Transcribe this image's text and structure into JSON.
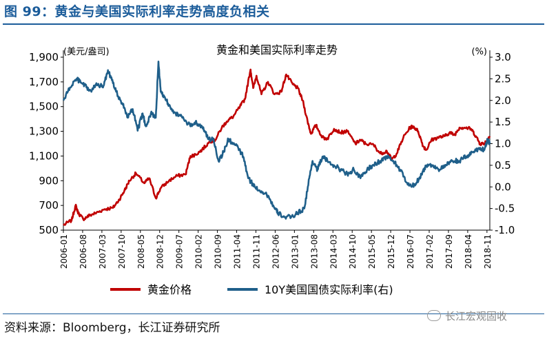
{
  "figure": {
    "title": "图 99：黄金与美国实际利率走势高度负相关",
    "source": "资料来源：Bloomberg，长江证券研究所",
    "watermark": "长江宏观固收"
  },
  "chart_data": {
    "type": "line",
    "title": "黄金和美国实际利率走势",
    "left_axis_unit": "(美元/盎司)",
    "right_axis_unit": "(%)",
    "ylim_left": [
      500,
      1900
    ],
    "yticks_left": [
      "500",
      "700",
      "900",
      "1,100",
      "1,300",
      "1,500",
      "1,700",
      "1,900"
    ],
    "ylim_right": [
      -1.0,
      3.0
    ],
    "yticks_right": [
      "-1.0",
      "-0.5",
      "0.0",
      "0.5",
      "1.0",
      "1.5",
      "2.0",
      "2.5",
      "3.0"
    ],
    "xlim": [
      2006.0,
      2018.92
    ],
    "xticks": [
      "2006-01",
      "2006-08",
      "2007-03",
      "2007-10",
      "2008-05",
      "2008-12",
      "2009-07",
      "2010-02",
      "2010-09",
      "2011-04",
      "2011-11",
      "2012-06",
      "2013-01",
      "2013-08",
      "2014-03",
      "2014-10",
      "2015-05",
      "2015-12",
      "2016-07",
      "2017-02",
      "2017-09",
      "2018-04",
      "2018-11"
    ],
    "grid": false,
    "legend_position": "bottom",
    "series": [
      {
        "name": "黄金价格",
        "axis": "left",
        "color": "#c00000",
        "x": [
          2006.0,
          2006.25,
          2006.37,
          2006.45,
          2006.6,
          2006.8,
          2007.0,
          2007.25,
          2007.5,
          2007.7,
          2007.85,
          2008.0,
          2008.2,
          2008.45,
          2008.6,
          2008.8,
          2008.95,
          2009.2,
          2009.45,
          2009.7,
          2009.85,
          2010.0,
          2010.2,
          2010.45,
          2010.6,
          2010.8,
          2010.95,
          2011.15,
          2011.35,
          2011.5,
          2011.67,
          2011.75,
          2011.85,
          2012.0,
          2012.2,
          2012.4,
          2012.6,
          2012.75,
          2012.95,
          2013.1,
          2013.25,
          2013.4,
          2013.5,
          2013.65,
          2013.85,
          2014.0,
          2014.2,
          2014.4,
          2014.6,
          2014.85,
          2015.0,
          2015.15,
          2015.4,
          2015.6,
          2015.8,
          2015.95,
          2016.1,
          2016.3,
          2016.5,
          2016.6,
          2016.75,
          2016.9,
          2017.0,
          2017.15,
          2017.35,
          2017.55,
          2017.7,
          2017.85,
          2018.0,
          2018.15,
          2018.35,
          2018.5,
          2018.62,
          2018.75,
          2018.92
        ],
        "values": [
          540,
          580,
          700,
          640,
          590,
          620,
          640,
          670,
          680,
          750,
          820,
          900,
          960,
          880,
          920,
          760,
          840,
          900,
          940,
          950,
          1100,
          1110,
          1150,
          1220,
          1230,
          1330,
          1380,
          1420,
          1500,
          1560,
          1800,
          1650,
          1750,
          1600,
          1700,
          1600,
          1620,
          1760,
          1680,
          1650,
          1550,
          1380,
          1280,
          1350,
          1250,
          1240,
          1320,
          1290,
          1300,
          1200,
          1230,
          1200,
          1190,
          1120,
          1140,
          1070,
          1120,
          1250,
          1330,
          1340,
          1300,
          1180,
          1150,
          1230,
          1250,
          1260,
          1290,
          1270,
          1330,
          1330,
          1320,
          1260,
          1200,
          1200,
          1260
        ]
      },
      {
        "name": "10Y美国国债实际利率(右)",
        "axis": "right",
        "color": "#1f5f8a",
        "x": [
          2006.0,
          2006.2,
          2006.4,
          2006.55,
          2006.7,
          2006.85,
          2007.0,
          2007.2,
          2007.35,
          2007.5,
          2007.6,
          2007.8,
          2007.95,
          2008.1,
          2008.25,
          2008.4,
          2008.5,
          2008.65,
          2008.8,
          2008.88,
          2008.95,
          2009.05,
          2009.2,
          2009.4,
          2009.6,
          2009.85,
          2010.0,
          2010.2,
          2010.4,
          2010.55,
          2010.7,
          2010.85,
          2011.0,
          2011.15,
          2011.3,
          2011.45,
          2011.6,
          2011.8,
          2012.0,
          2012.2,
          2012.4,
          2012.5,
          2012.7,
          2012.9,
          2013.1,
          2013.3,
          2013.45,
          2013.55,
          2013.7,
          2013.85,
          2014.0,
          2014.2,
          2014.4,
          2014.6,
          2014.8,
          2015.0,
          2015.2,
          2015.4,
          2015.6,
          2015.8,
          2016.0,
          2016.2,
          2016.4,
          2016.55,
          2016.7,
          2016.85,
          2017.0,
          2017.2,
          2017.4,
          2017.6,
          2017.8,
          2018.0,
          2018.2,
          2018.4,
          2018.6,
          2018.75,
          2018.85,
          2018.92
        ],
        "values": [
          2.0,
          2.3,
          2.5,
          2.4,
          2.3,
          2.2,
          2.4,
          2.3,
          2.7,
          2.4,
          2.2,
          1.9,
          1.6,
          1.8,
          1.3,
          1.7,
          1.4,
          1.7,
          1.6,
          2.9,
          2.2,
          2.1,
          1.9,
          1.7,
          1.6,
          1.4,
          1.5,
          1.4,
          1.1,
          1.1,
          0.6,
          0.8,
          1.1,
          1.0,
          0.9,
          0.7,
          0.2,
          0.0,
          -0.1,
          -0.2,
          -0.5,
          -0.6,
          -0.7,
          -0.7,
          -0.6,
          -0.5,
          0.2,
          0.6,
          0.4,
          0.7,
          0.6,
          0.5,
          0.4,
          0.3,
          0.4,
          0.2,
          0.4,
          0.5,
          0.6,
          0.7,
          0.6,
          0.4,
          0.1,
          0.0,
          0.1,
          0.3,
          0.5,
          0.5,
          0.4,
          0.5,
          0.6,
          0.6,
          0.7,
          0.8,
          0.9,
          0.85,
          1.1,
          1.0
        ]
      }
    ]
  }
}
